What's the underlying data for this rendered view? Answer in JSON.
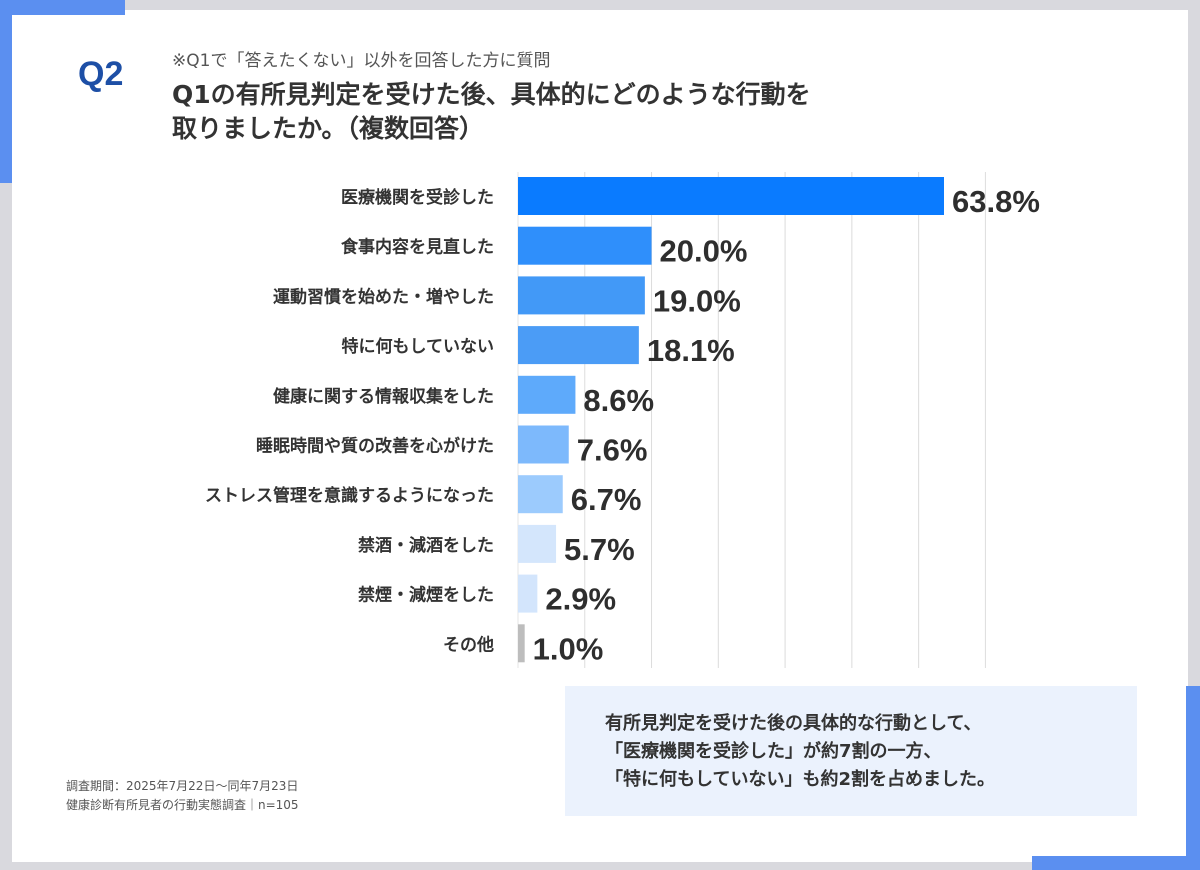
{
  "header": {
    "q_label": "Q2",
    "note": "※Q1で「答えたくない」以外を回答した方に質問",
    "title_line1": "Q1の有所見判定を受けた後、具体的にどのような行動を",
    "title_line2": "取りましたか。（複数回答）"
  },
  "chart_data": {
    "type": "bar",
    "orientation": "horizontal",
    "categories": [
      "医療機関を受診した",
      "食事内容を見直した",
      "運動習慣を始めた・増やした",
      "特に何もしていない",
      "健康に関する情報収集をした",
      "睡眠時間や質の改善を心がけた",
      "ストレス管理を意識するようになった",
      "禁酒・減酒をした",
      "禁煙・減煙をした",
      "その他"
    ],
    "values": [
      63.8,
      20.0,
      19.0,
      18.1,
      8.6,
      7.6,
      6.7,
      5.7,
      2.9,
      1.0
    ],
    "labels": [
      "63.8%",
      "20.0%",
      "19.0%",
      "18.1%",
      "8.6%",
      "7.6%",
      "6.7%",
      "5.7%",
      "2.9%",
      "1.0%"
    ],
    "colors": [
      "#0a7bff",
      "#2f8ffb",
      "#4299f7",
      "#4b9cf6",
      "#5eaafb",
      "#7db9fc",
      "#9ccbfd",
      "#d4e6fc",
      "#d3e5fc",
      "#bdbdbd"
    ],
    "xlim": [
      0,
      70
    ],
    "grid": true,
    "unit": "%"
  },
  "summary": {
    "line1": "有所見判定を受けた後の具体的な行動として、",
    "line2": "「医療機関を受診した」が約7割の一方、",
    "line3": "「特に何もしていない」も約2割を占めました。"
  },
  "footer": {
    "period": "調査期間：2025年7月22日～同年7月23日",
    "survey": "健康診断有所見者の行動実態調査｜n=105"
  }
}
